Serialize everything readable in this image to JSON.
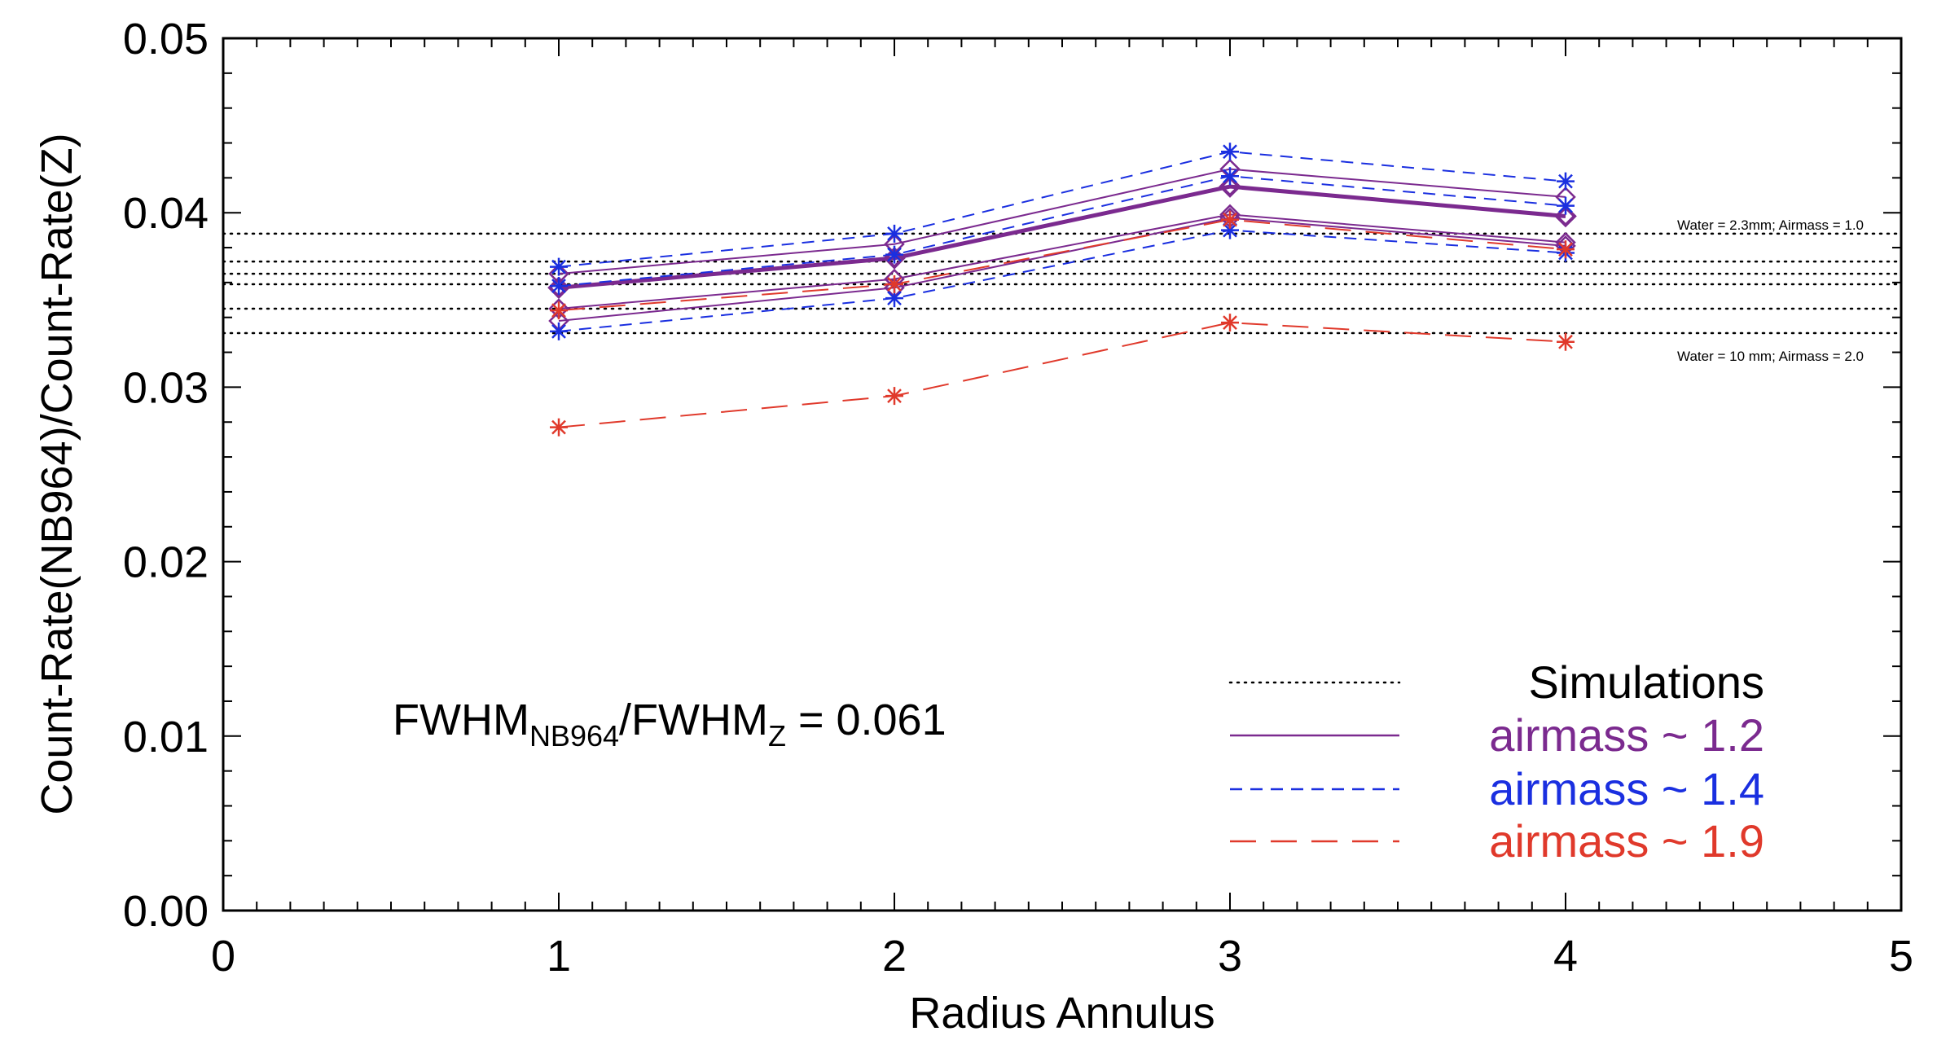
{
  "chart_data": {
    "type": "line",
    "xlabel": "Radius Annulus",
    "ylabel": "Count-Rate(NB964)/Count-Rate(Z)",
    "xlim": [
      0,
      5
    ],
    "ylim": [
      0.0,
      0.05
    ],
    "xticks": [
      "0",
      "1",
      "2",
      "3",
      "4",
      "5"
    ],
    "yticks": [
      "0.00",
      "0.01",
      "0.02",
      "0.03",
      "0.04",
      "0.05"
    ],
    "x": [
      1,
      2,
      3,
      4
    ],
    "simulation_lines": [
      0.0388,
      0.0372,
      0.0365,
      0.0359,
      0.0345,
      0.0331
    ],
    "annotations": {
      "top": "Water = 2.3mm; Airmass = 1.0",
      "bottom": "Water = 10 mm; Airmass = 2.0"
    },
    "fwhm": {
      "base": "FWHM",
      "sub1": "NB964",
      "mid": "/FWHM",
      "sub2": "Z",
      "tail": " = 0.061"
    },
    "legend": [
      {
        "label": "Simulations",
        "style": "dotted",
        "color": "#000000"
      },
      {
        "label": "airmass ~ 1.2",
        "style": "solid",
        "color": "#7b2a8f"
      },
      {
        "label": "airmass ~ 1.4",
        "style": "short-dash",
        "color": "#1a2fe0"
      },
      {
        "label": "airmass ~ 1.9",
        "style": "long-dash",
        "color": "#e0392b"
      }
    ],
    "series": [
      {
        "name": "airmass ~ 1.2 (a)",
        "group": "1.2",
        "values": [
          0.0365,
          0.0382,
          0.0425,
          0.0409
        ],
        "marker": "diamond",
        "width": 2
      },
      {
        "name": "airmass ~ 1.2 (b)",
        "group": "1.2",
        "values": [
          0.0357,
          0.0374,
          0.0415,
          0.0398
        ],
        "marker": "diamond",
        "width": 5
      },
      {
        "name": "airmass ~ 1.2 (c)",
        "group": "1.2",
        "values": [
          0.0345,
          0.0362,
          0.0399,
          0.0383
        ],
        "marker": "diamond",
        "width": 2
      },
      {
        "name": "airmass ~ 1.2 (d)",
        "group": "1.2",
        "values": [
          0.0338,
          0.0357,
          0.0397,
          0.0381
        ],
        "marker": "diamond",
        "width": 2
      },
      {
        "name": "airmass ~ 1.4 (a)",
        "group": "1.4",
        "values": [
          0.0369,
          0.0388,
          0.0435,
          0.0418
        ],
        "marker": "asterisk",
        "width": 2
      },
      {
        "name": "airmass ~ 1.4 (b)",
        "group": "1.4",
        "values": [
          0.0358,
          0.0376,
          0.0421,
          0.0404
        ],
        "marker": "asterisk",
        "width": 2
      },
      {
        "name": "airmass ~ 1.4 (c)",
        "group": "1.4",
        "values": [
          0.0332,
          0.0351,
          0.039,
          0.0377
        ],
        "marker": "asterisk",
        "width": 2
      },
      {
        "name": "airmass ~ 1.9 (a)",
        "group": "1.9",
        "values": [
          0.0344,
          0.0359,
          0.0396,
          0.0379
        ],
        "marker": "asterisk",
        "width": 2
      },
      {
        "name": "airmass ~ 1.9 (b)",
        "group": "1.9",
        "values": [
          0.0277,
          0.0295,
          0.0337,
          0.0326
        ],
        "marker": "asterisk",
        "width": 2
      }
    ]
  }
}
